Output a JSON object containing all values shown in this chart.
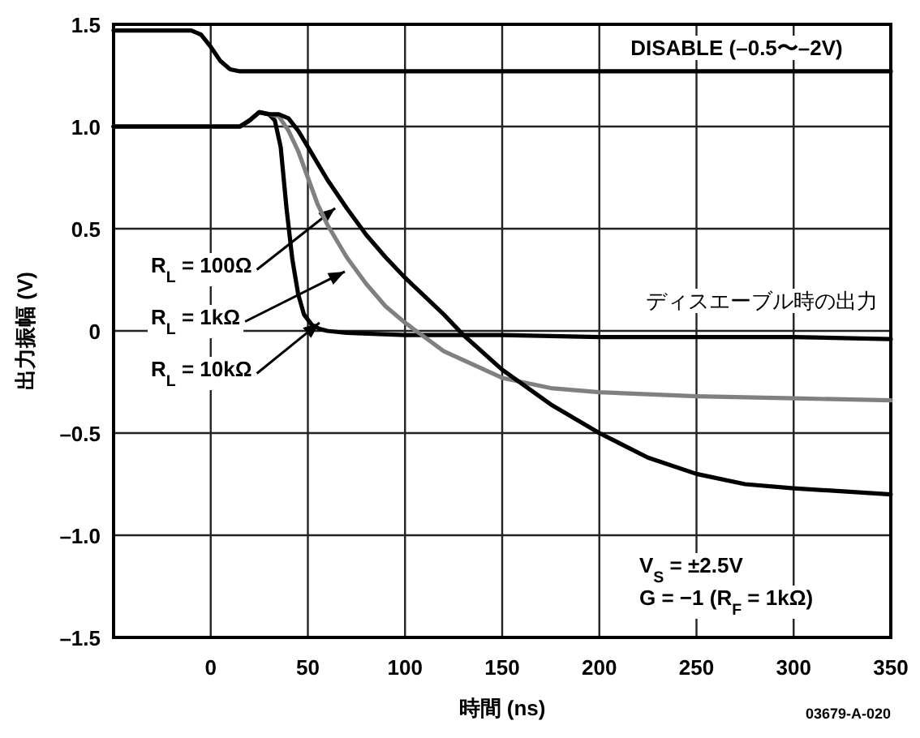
{
  "chart_data": {
    "type": "line",
    "xlabel": "時間 (ns)",
    "ylabel": "出力振幅 (V)",
    "xlim": [
      -50,
      350
    ],
    "ylim": [
      -1.5,
      1.5
    ],
    "xticks": [
      0,
      50,
      100,
      150,
      200,
      250,
      300,
      350
    ],
    "yticks": [
      {
        "value": -1.5,
        "label": "–1.5"
      },
      {
        "value": -1.0,
        "label": "–1.0"
      },
      {
        "value": -0.5,
        "label": "–0.5"
      },
      0,
      0.5,
      {
        "value": 1.0,
        "label": "1.0"
      },
      1.5
    ],
    "grid": true,
    "legend": false,
    "marker": "none",
    "line_style": "solid",
    "series": [
      {
        "name": "DISABLE (–0.5〜–2V)",
        "color": "#000000",
        "x": [
          -50,
          -10,
          -5,
          0,
          5,
          10,
          15,
          350
        ],
        "values": [
          1.47,
          1.47,
          1.45,
          1.39,
          1.32,
          1.28,
          1.27,
          1.27
        ]
      },
      {
        "color": "#000000",
        "x": [
          -50,
          15,
          20,
          25,
          30,
          33,
          36,
          39,
          42,
          45,
          48,
          52,
          56,
          60,
          70,
          100,
          150,
          200,
          250,
          300,
          350
        ],
        "values": [
          1.0,
          1.0,
          1.03,
          1.07,
          1.06,
          1.03,
          0.9,
          0.6,
          0.35,
          0.18,
          0.08,
          0.03,
          0.01,
          0.0,
          -0.01,
          -0.02,
          -0.02,
          -0.03,
          -0.03,
          -0.03,
          -0.04
        ]
      },
      {
        "color": "#808080",
        "x": [
          -50,
          15,
          20,
          25,
          30,
          35,
          40,
          45,
          50,
          55,
          60,
          70,
          80,
          90,
          100,
          120,
          150,
          175,
          200,
          250,
          300,
          350
        ],
        "values": [
          1.0,
          1.0,
          1.03,
          1.07,
          1.06,
          1.05,
          0.98,
          0.88,
          0.75,
          0.62,
          0.52,
          0.36,
          0.23,
          0.12,
          0.04,
          -0.1,
          -0.23,
          -0.28,
          -0.3,
          -0.32,
          -0.33,
          -0.34
        ]
      },
      {
        "color": "#000000",
        "x": [
          -50,
          15,
          20,
          25,
          30,
          35,
          40,
          45,
          50,
          60,
          70,
          80,
          90,
          100,
          110,
          120,
          130,
          150,
          175,
          200,
          225,
          250,
          275,
          300,
          350
        ],
        "values": [
          1.0,
          1.0,
          1.03,
          1.07,
          1.06,
          1.06,
          1.04,
          0.98,
          0.9,
          0.74,
          0.6,
          0.47,
          0.36,
          0.26,
          0.17,
          0.08,
          -0.02,
          -0.19,
          -0.36,
          -0.5,
          -0.62,
          -0.7,
          -0.75,
          -0.77,
          -0.8
        ]
      }
    ],
    "annotations": [
      {
        "text": "R$_{L}$ = 100Ω",
        "x": 64,
        "y": 0.6
      },
      {
        "text": "R$_{L}$ = 1kΩ",
        "x": 69,
        "y": 0.29
      },
      {
        "text": "R$_{L}$ = 10kΩ",
        "x": 56,
        "y": 0.04
      },
      "ディスエーブル時の出力",
      "V$_{S}$ = ±2.5V",
      "G = −1 (R$_{F}$ = 1kΩ)",
      "03679-A-020"
    ]
  }
}
